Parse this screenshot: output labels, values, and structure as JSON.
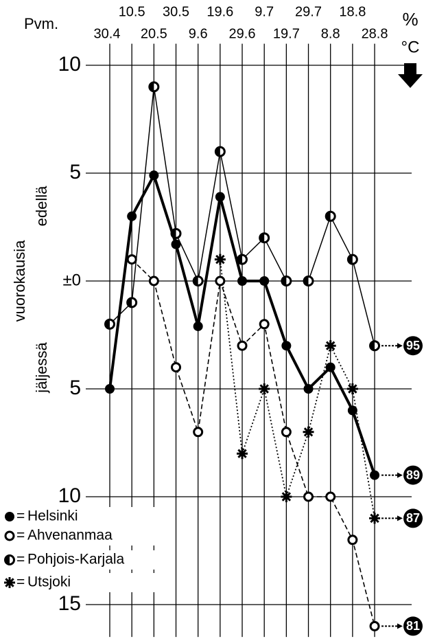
{
  "chart_data": {
    "type": "line",
    "x_label": "Pvm.",
    "unit_top": "%",
    "unit_bottom": "°C",
    "y_label": "vuorokausia",
    "upper_label": "edellä",
    "lower_label": "jäljessä",
    "categories": [
      "30.4",
      "10.5",
      "20.5",
      "30.5",
      "9.6",
      "19.6",
      "29.6",
      "9.7",
      "19.7",
      "29.7",
      "8.8",
      "18.8",
      "28.8"
    ],
    "ylim": [
      -16.5,
      11
    ],
    "yticks": [
      10,
      5,
      {
        "value": 0,
        "label": "±0"
      },
      {
        "value": -5,
        "label": "5"
      },
      {
        "value": -10,
        "label": "10"
      },
      {
        "value": -15,
        "label": "15"
      }
    ],
    "grid": true,
    "series": [
      {
        "name": "Helsinki",
        "color": "#000000",
        "marker": "filled",
        "line": "thick",
        "end_label": "89",
        "values": [
          -5,
          3,
          4.9,
          1.7,
          -2.1,
          3.9,
          0,
          0,
          -3,
          -5,
          -4,
          -6,
          -9
        ]
      },
      {
        "name": "Ahvenanmaa",
        "color": "#000000",
        "marker": "open",
        "line": "dashed",
        "end_label": "81",
        "values": [
          null,
          1,
          0,
          -4,
          -7,
          0,
          -3,
          -2,
          -7,
          -10,
          -10,
          -12,
          -16
        ]
      },
      {
        "name": "Pohjois-Karjala",
        "color": "#000000",
        "marker": "half",
        "line": "thin",
        "end_label": "95",
        "values": [
          -2,
          -1,
          9,
          2.2,
          0,
          6,
          1,
          2,
          0,
          0,
          3,
          1,
          -3
        ]
      },
      {
        "name": "Utsjoki",
        "color": "#000000",
        "marker": "star",
        "line": "dotted",
        "end_label": "87",
        "values": [
          null,
          null,
          null,
          null,
          null,
          1,
          -8,
          -5,
          -10,
          -7,
          -3,
          -5,
          -11
        ]
      }
    ]
  }
}
